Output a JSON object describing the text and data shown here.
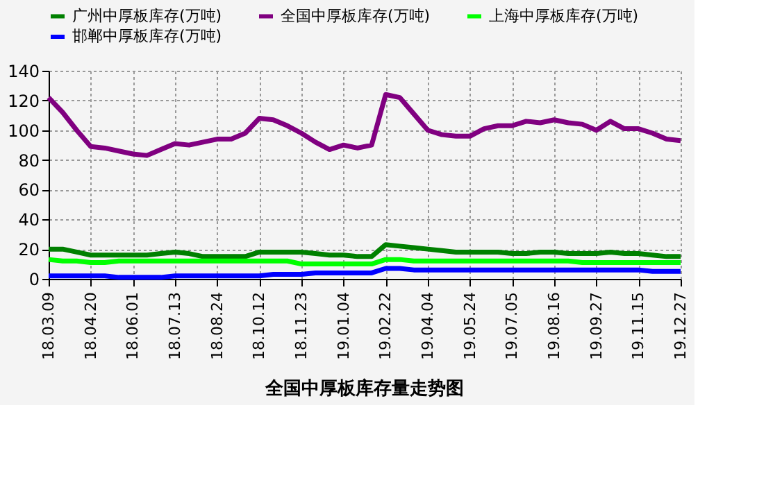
{
  "chart_data": {
    "type": "line",
    "title": "全国中厚板库存量走势图",
    "categories": [
      "18.03.09",
      null,
      null,
      "18.04.20",
      null,
      null,
      "18.06.01",
      null,
      null,
      "18.07.13",
      null,
      null,
      "18.08.24",
      null,
      null,
      "18.10.12",
      null,
      null,
      "18.11.23",
      null,
      null,
      "19.01.04",
      null,
      null,
      "19.02.22",
      null,
      null,
      "19.04.04",
      null,
      null,
      "19.05.24",
      null,
      null,
      "19.07.05",
      null,
      null,
      "19.08.16",
      null,
      null,
      "19.09.27",
      null,
      null,
      "19.11.15",
      null,
      null,
      "19.12.27"
    ],
    "series": [
      {
        "name": "广州中厚板库存(万吨)",
        "color": "#008000",
        "values": [
          20,
          20,
          18,
          16,
          16,
          16,
          16,
          16,
          17,
          18,
          17,
          15,
          15,
          15,
          15,
          18,
          18,
          18,
          18,
          17,
          16,
          16,
          15,
          15,
          23,
          22,
          21,
          20,
          19,
          18,
          18,
          18,
          18,
          17,
          17,
          18,
          18,
          17,
          17,
          17,
          18,
          17,
          17,
          16,
          15,
          15
        ]
      },
      {
        "name": "全国中厚板库存(万吨)",
        "color": "#800080",
        "values": [
          122,
          112,
          100,
          89,
          88,
          86,
          84,
          83,
          87,
          91,
          90,
          92,
          94,
          94,
          98,
          108,
          107,
          103,
          98,
          92,
          87,
          90,
          88,
          90,
          124,
          122,
          111,
          100,
          97,
          96,
          96,
          101,
          103,
          103,
          106,
          105,
          107,
          105,
          104,
          100,
          106,
          101,
          101,
          98,
          94,
          93
        ]
      },
      {
        "name": "上海中厚板库存(万吨)",
        "color": "#00ff00",
        "values": [
          13,
          12,
          12,
          11,
          11,
          12,
          12,
          12,
          12,
          12,
          12,
          12,
          12,
          12,
          12,
          12,
          12,
          12,
          10,
          10,
          10,
          10,
          10,
          10,
          13,
          13,
          12,
          12,
          12,
          12,
          12,
          12,
          12,
          12,
          12,
          12,
          12,
          12,
          11,
          11,
          11,
          11,
          11,
          11,
          11,
          11
        ]
      },
      {
        "name": "邯郸中厚板库存(万吨)",
        "color": "#0000ff",
        "values": [
          2,
          2,
          2,
          2,
          2,
          1,
          1,
          1,
          1,
          2,
          2,
          2,
          2,
          2,
          2,
          2,
          3,
          3,
          3,
          4,
          4,
          4,
          4,
          4,
          7,
          7,
          6,
          6,
          6,
          6,
          6,
          6,
          6,
          6,
          6,
          6,
          6,
          6,
          6,
          6,
          6,
          6,
          6,
          5,
          5,
          5
        ]
      }
    ],
    "ylim": [
      0,
      140
    ],
    "yticks": [
      0,
      20,
      40,
      60,
      80,
      100,
      120,
      140
    ],
    "grid": true,
    "legend": "top",
    "marker": "none",
    "line_style": "solid"
  }
}
